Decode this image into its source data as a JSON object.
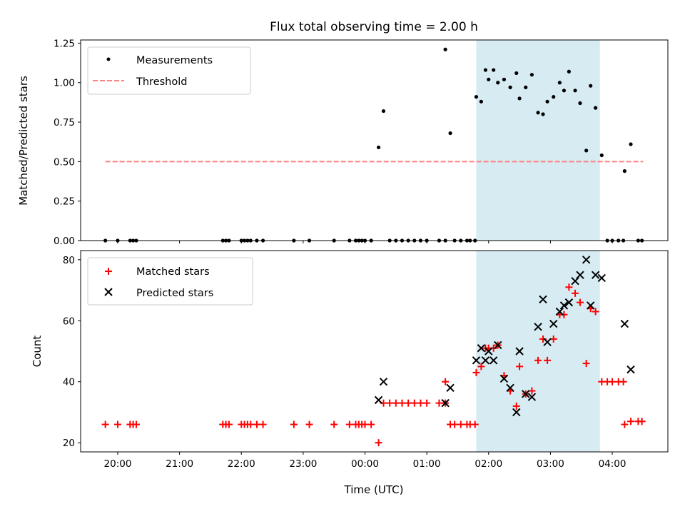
{
  "figure": {
    "title": "Flux total observing time = 2.00 h",
    "xlabel": "Time (UTC)",
    "top_ylabel": "Matched/Predicted stars",
    "bottom_ylabel": "Count"
  },
  "chart_data": [
    {
      "type": "scatter",
      "title": "Flux total observing time = 2.00 h",
      "xlabel": "",
      "ylabel": "Matched/Predicted stars",
      "x_unit": "hours since 00:00 UTC",
      "xlim": [
        -4.6,
        4.9
      ],
      "ylim": [
        0,
        1.27
      ],
      "xticks": [
        "20:00",
        "21:00",
        "22:00",
        "23:00",
        "00:00",
        "01:00",
        "02:00",
        "03:00",
        "04:00"
      ],
      "yticks": [
        "0.00",
        "0.25",
        "0.50",
        "0.75",
        "1.00",
        "1.25"
      ],
      "grid": false,
      "legend": "top-left",
      "shaded_region": {
        "x": [
          1.8,
          3.8
        ],
        "color": "#add8e6"
      },
      "series": [
        {
          "name": "Measurements",
          "marker": "dot",
          "color": "#000000",
          "points": [
            [
              -4.2,
              0
            ],
            [
              -4.0,
              0
            ],
            [
              -3.8,
              0
            ],
            [
              -3.75,
              0
            ],
            [
              -3.7,
              0
            ],
            [
              -2.3,
              0
            ],
            [
              -2.25,
              0
            ],
            [
              -2.2,
              0
            ],
            [
              -2.0,
              0
            ],
            [
              -1.95,
              0
            ],
            [
              -1.9,
              0
            ],
            [
              -1.85,
              0
            ],
            [
              -1.75,
              0
            ],
            [
              -1.65,
              0
            ],
            [
              -1.15,
              0
            ],
            [
              -0.9,
              0
            ],
            [
              -0.5,
              0
            ],
            [
              -0.25,
              0
            ],
            [
              -0.15,
              0
            ],
            [
              -0.1,
              0
            ],
            [
              -0.05,
              0
            ],
            [
              0.0,
              0
            ],
            [
              0.1,
              0
            ],
            [
              0.22,
              0.59
            ],
            [
              0.3,
              0.82
            ],
            [
              0.4,
              0
            ],
            [
              0.5,
              0
            ],
            [
              0.6,
              0
            ],
            [
              0.7,
              0
            ],
            [
              0.8,
              0
            ],
            [
              0.9,
              0
            ],
            [
              1.0,
              0
            ],
            [
              1.2,
              0
            ],
            [
              1.3,
              0
            ],
            [
              1.3,
              1.21
            ],
            [
              1.38,
              0.68
            ],
            [
              1.45,
              0
            ],
            [
              1.55,
              0
            ],
            [
              1.65,
              0
            ],
            [
              1.7,
              0
            ],
            [
              1.78,
              0
            ],
            [
              1.8,
              0.91
            ],
            [
              1.88,
              0.88
            ],
            [
              1.95,
              1.08
            ],
            [
              2.0,
              1.02
            ],
            [
              2.08,
              1.08
            ],
            [
              2.15,
              1.0
            ],
            [
              2.25,
              1.02
            ],
            [
              2.35,
              0.97
            ],
            [
              2.45,
              1.06
            ],
            [
              2.5,
              0.9
            ],
            [
              2.6,
              0.97
            ],
            [
              2.7,
              1.05
            ],
            [
              2.8,
              0.81
            ],
            [
              2.88,
              0.8
            ],
            [
              2.95,
              0.88
            ],
            [
              3.05,
              0.91
            ],
            [
              3.15,
              1.0
            ],
            [
              3.22,
              0.95
            ],
            [
              3.3,
              1.07
            ],
            [
              3.4,
              0.95
            ],
            [
              3.48,
              0.87
            ],
            [
              3.58,
              0.57
            ],
            [
              3.65,
              0.98
            ],
            [
              3.73,
              0.84
            ],
            [
              3.83,
              0.54
            ],
            [
              3.92,
              0
            ],
            [
              4.0,
              0
            ],
            [
              4.1,
              0
            ],
            [
              4.18,
              0
            ],
            [
              4.2,
              0.44
            ],
            [
              4.3,
              0.61
            ],
            [
              4.42,
              0
            ],
            [
              4.48,
              0
            ]
          ]
        },
        {
          "name": "Threshold",
          "type": "line",
          "style": "dashed",
          "color": "#ff8080",
          "points": [
            [
              -4.2,
              0.5
            ],
            [
              4.5,
              0.5
            ]
          ]
        }
      ]
    },
    {
      "type": "scatter",
      "title": "",
      "xlabel": "Time (UTC)",
      "ylabel": "Count",
      "x_unit": "hours since 00:00 UTC",
      "xlim": [
        -4.6,
        4.9
      ],
      "ylim": [
        17,
        83
      ],
      "xticks": [
        "20:00",
        "21:00",
        "22:00",
        "23:00",
        "00:00",
        "01:00",
        "02:00",
        "03:00",
        "04:00"
      ],
      "yticks": [
        "20",
        "40",
        "60",
        "80"
      ],
      "grid": false,
      "legend": "top-left",
      "shaded_region": {
        "x": [
          1.8,
          3.8
        ],
        "color": "#add8e6"
      },
      "series": [
        {
          "name": "Matched stars",
          "marker": "plus",
          "color": "#ff0000",
          "points": [
            [
              -4.2,
              26
            ],
            [
              -4.0,
              26
            ],
            [
              -3.8,
              26
            ],
            [
              -3.75,
              26
            ],
            [
              -3.7,
              26
            ],
            [
              -2.3,
              26
            ],
            [
              -2.25,
              26
            ],
            [
              -2.2,
              26
            ],
            [
              -2.0,
              26
            ],
            [
              -1.95,
              26
            ],
            [
              -1.9,
              26
            ],
            [
              -1.85,
              26
            ],
            [
              -1.75,
              26
            ],
            [
              -1.65,
              26
            ],
            [
              -1.15,
              26
            ],
            [
              -0.9,
              26
            ],
            [
              -0.5,
              26
            ],
            [
              -0.25,
              26
            ],
            [
              -0.15,
              26
            ],
            [
              -0.1,
              26
            ],
            [
              -0.05,
              26
            ],
            [
              0.0,
              26
            ],
            [
              0.1,
              26
            ],
            [
              0.22,
              20
            ],
            [
              0.3,
              33
            ],
            [
              0.4,
              33
            ],
            [
              0.5,
              33
            ],
            [
              0.6,
              33
            ],
            [
              0.7,
              33
            ],
            [
              0.8,
              33
            ],
            [
              0.9,
              33
            ],
            [
              1.0,
              33
            ],
            [
              1.2,
              33
            ],
            [
              1.3,
              33
            ],
            [
              1.3,
              40
            ],
            [
              1.38,
              26
            ],
            [
              1.45,
              26
            ],
            [
              1.55,
              26
            ],
            [
              1.65,
              26
            ],
            [
              1.7,
              26
            ],
            [
              1.78,
              26
            ],
            [
              1.8,
              43
            ],
            [
              1.88,
              45
            ],
            [
              1.95,
              51
            ],
            [
              2.0,
              51
            ],
            [
              2.08,
              51
            ],
            [
              2.15,
              52
            ],
            [
              2.25,
              42
            ],
            [
              2.35,
              37
            ],
            [
              2.45,
              32
            ],
            [
              2.5,
              45
            ],
            [
              2.6,
              36
            ],
            [
              2.7,
              37
            ],
            [
              2.8,
              47
            ],
            [
              2.88,
              54
            ],
            [
              2.95,
              47
            ],
            [
              3.05,
              54
            ],
            [
              3.15,
              62
            ],
            [
              3.22,
              62
            ],
            [
              3.3,
              71
            ],
            [
              3.4,
              69
            ],
            [
              3.48,
              66
            ],
            [
              3.58,
              46
            ],
            [
              3.65,
              64
            ],
            [
              3.73,
              63
            ],
            [
              3.83,
              40
            ],
            [
              3.92,
              40
            ],
            [
              4.0,
              40
            ],
            [
              4.1,
              40
            ],
            [
              4.18,
              40
            ],
            [
              4.2,
              26
            ],
            [
              4.3,
              27
            ],
            [
              4.42,
              27
            ],
            [
              4.48,
              27
            ]
          ]
        },
        {
          "name": "Predicted stars",
          "marker": "x",
          "color": "#000000",
          "points": [
            [
              0.22,
              34
            ],
            [
              0.3,
              40
            ],
            [
              1.3,
              33
            ],
            [
              1.38,
              38
            ],
            [
              1.8,
              47
            ],
            [
              1.88,
              51
            ],
            [
              1.95,
              47
            ],
            [
              2.0,
              50
            ],
            [
              2.08,
              47
            ],
            [
              2.15,
              52
            ],
            [
              2.25,
              41
            ],
            [
              2.35,
              38
            ],
            [
              2.45,
              30
            ],
            [
              2.5,
              50
            ],
            [
              2.6,
              36
            ],
            [
              2.7,
              35
            ],
            [
              2.8,
              58
            ],
            [
              2.88,
              67
            ],
            [
              2.95,
              53
            ],
            [
              3.05,
              59
            ],
            [
              3.15,
              63
            ],
            [
              3.22,
              65
            ],
            [
              3.3,
              66
            ],
            [
              3.4,
              73
            ],
            [
              3.48,
              75
            ],
            [
              3.58,
              80
            ],
            [
              3.65,
              65
            ],
            [
              3.73,
              75
            ],
            [
              3.83,
              74
            ],
            [
              4.2,
              59
            ],
            [
              4.3,
              44
            ]
          ]
        }
      ]
    }
  ]
}
